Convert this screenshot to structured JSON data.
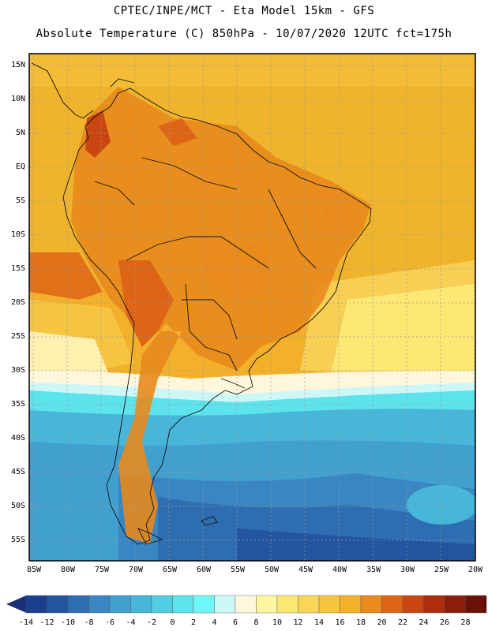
{
  "title_line1": "CPTEC/INPE/MCT -  Eta Model 15km - GFS",
  "title_line2": "Absolute Temperature (C) 850hPa - 10/07/2020 12UTC fct=175h",
  "lat_labels": [
    "15N",
    "10N",
    "5N",
    "EQ",
    "5S",
    "10S",
    "15S",
    "20S",
    "25S",
    "30S",
    "35S",
    "40S",
    "45S",
    "50S",
    "55S"
  ],
  "lon_labels": [
    "85W",
    "80W",
    "75W",
    "70W",
    "65W",
    "60W",
    "55W",
    "50W",
    "45W",
    "40W",
    "35W",
    "30W",
    "25W",
    "20W"
  ],
  "colorbar": {
    "labels": [
      "-14",
      "-12",
      "-10",
      "-8",
      "-6",
      "-4",
      "-2",
      "0",
      "2",
      "4",
      "6",
      "8",
      "10",
      "12",
      "14",
      "16",
      "18",
      "20",
      "22",
      "24",
      "26",
      "28"
    ],
    "colors": [
      "#1a3f8e",
      "#22549f",
      "#2e6db1",
      "#3a86c2",
      "#42a0cf",
      "#48b6d9",
      "#52cde3",
      "#5de3ec",
      "#6ff7f7",
      "#cdf7f7",
      "#fff7dc",
      "#fff7a0",
      "#fde874",
      "#f9d65a",
      "#f5c542",
      "#f3b02a",
      "#e88a1c",
      "#de6416",
      "#c94612",
      "#ad2e0e",
      "#8c1d0a",
      "#6a1208"
    ],
    "left_arrow": "#1b2f78",
    "right_arrow": "#5a0a0a"
  }
}
